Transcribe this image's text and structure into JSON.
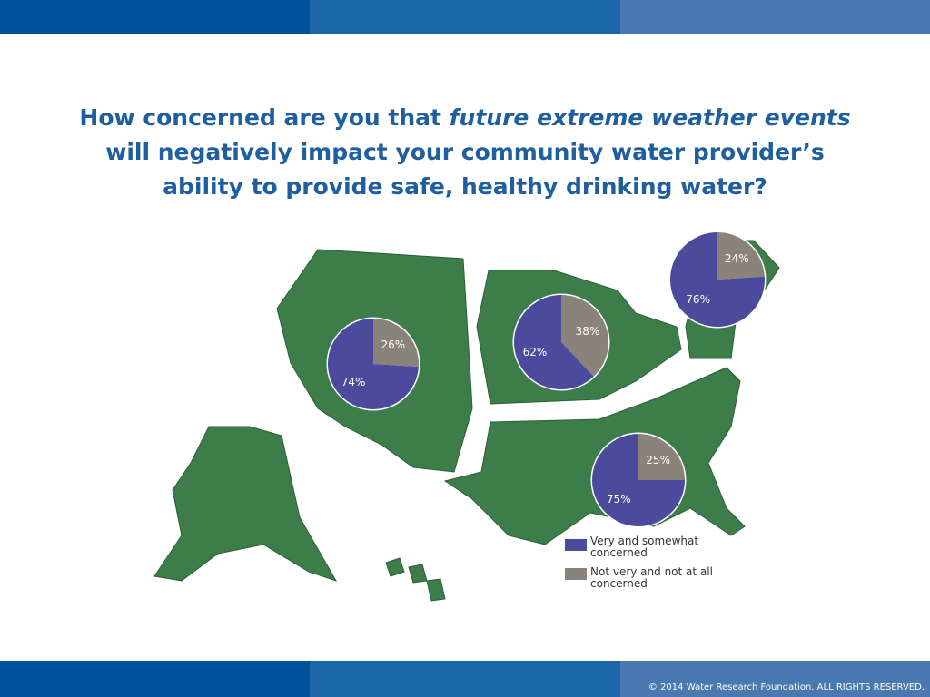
{
  "title": {
    "parts": [
      "How concerned are you that ",
      "future extreme weather events",
      "will negatively impact your community water provider’s",
      "ability to provide safe, healthy drinking water?"
    ]
  },
  "legend": {
    "items": [
      {
        "name": "Very and somewhat concerned",
        "color": "#4b4a9c"
      },
      {
        "name": "Not very and not at all concerned",
        "color": "#8a837b"
      }
    ]
  },
  "chart_data": [
    {
      "type": "pie",
      "values": [
        74,
        26
      ],
      "value_labels": [
        "74%",
        "26%"
      ],
      "colors": [
        "#4b4a9c",
        "#8a837b"
      ]
    },
    {
      "type": "pie",
      "values": [
        62,
        38
      ],
      "value_labels": [
        "62%",
        "38%"
      ],
      "colors": [
        "#4b4a9c",
        "#8a837b"
      ]
    },
    {
      "type": "pie",
      "values": [
        76,
        24
      ],
      "value_labels": [
        "76%",
        "24%"
      ],
      "colors": [
        "#4b4a9c",
        "#8a837b"
      ]
    },
    {
      "type": "pie",
      "values": [
        75,
        25
      ],
      "value_labels": [
        "75%",
        "25%"
      ],
      "colors": [
        "#4b4a9c",
        "#8a837b"
      ]
    }
  ],
  "footer": "© 2014 Water Research Foundation. ALL RIGHTS RESERVED."
}
